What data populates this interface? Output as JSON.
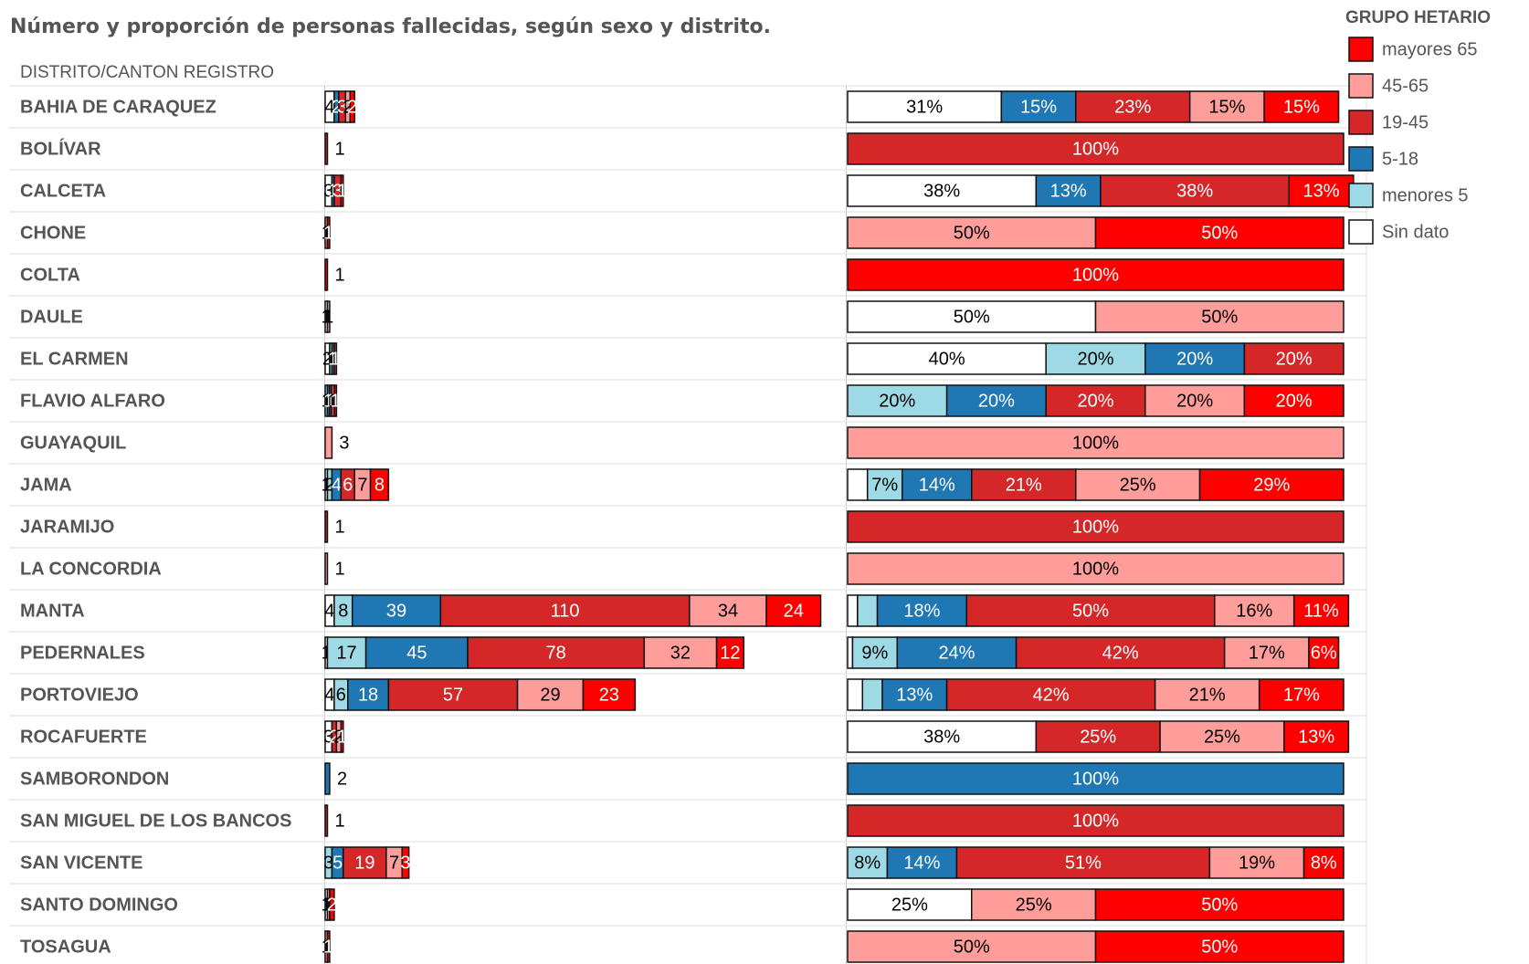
{
  "title": "Número y proporción de personas fallecidas, según sexo y distrito.",
  "row_header": "DISTRITO/CANTON REGISTRO",
  "legend_title": "GRUPO HETARIO",
  "chart_data": [
    {
      "type": "bar",
      "orientation": "horizontal",
      "stacked": true,
      "categories": [
        "BAHIA DE CARAQUEZ",
        "BOLÍVAR",
        "CALCETA",
        "CHONE",
        "COLTA",
        "DAULE",
        "EL CARMEN",
        "FLAVIO ALFARO",
        "GUAYAQUIL",
        "JAMA",
        "JARAMIJO",
        "LA CONCORDIA",
        "MANTA",
        "PEDERNALES",
        "PORTOVIEJO",
        "ROCAFUERTE",
        "SAMBORONDON",
        "SAN MIGUEL DE LOS BANCOS",
        "SAN VICENTE",
        "SANTO DOMINGO",
        "TOSAGUA"
      ],
      "xlim": [
        0,
        220
      ],
      "series": [
        {
          "name": "Sin dato",
          "color": "#ffffff",
          "values": [
            4,
            0,
            3,
            0,
            0,
            1,
            2,
            0,
            0,
            1,
            0,
            0,
            4,
            1,
            4,
            3,
            0,
            0,
            0,
            1,
            0
          ]
        },
        {
          "name": "menores 5",
          "color": "#9edae5",
          "values": [
            0,
            0,
            0,
            0,
            0,
            0,
            1,
            1,
            0,
            2,
            0,
            0,
            8,
            17,
            6,
            0,
            0,
            0,
            3,
            0,
            0
          ]
        },
        {
          "name": "5-18",
          "color": "#1f77b4",
          "values": [
            2,
            0,
            1,
            0,
            0,
            0,
            1,
            1,
            0,
            4,
            0,
            0,
            39,
            45,
            18,
            0,
            2,
            0,
            5,
            0,
            0
          ]
        },
        {
          "name": "19-45",
          "color": "#d62728",
          "values": [
            3,
            1,
            3,
            0,
            0,
            0,
            1,
            1,
            0,
            6,
            1,
            0,
            110,
            78,
            57,
            2,
            0,
            1,
            19,
            0,
            0
          ]
        },
        {
          "name": "45-65",
          "color": "#ff9d9a",
          "values": [
            2,
            0,
            0,
            1,
            0,
            1,
            0,
            1,
            3,
            7,
            0,
            1,
            34,
            32,
            29,
            2,
            0,
            0,
            7,
            1,
            1
          ]
        },
        {
          "name": "mayores 65",
          "color": "#ff0000",
          "values": [
            2,
            0,
            1,
            1,
            1,
            0,
            0,
            1,
            0,
            8,
            0,
            0,
            24,
            12,
            23,
            1,
            0,
            0,
            3,
            2,
            1
          ]
        }
      ]
    },
    {
      "type": "bar",
      "orientation": "horizontal",
      "stacked": true,
      "xlim": [
        0,
        100
      ],
      "series": [
        {
          "values": [
            31,
            0,
            38,
            0,
            0,
            50,
            40,
            0,
            0,
            4,
            0,
            0,
            2,
            1,
            3,
            38,
            0,
            0,
            0,
            25,
            0
          ],
          "value_labels": [
            "31%",
            null,
            "38%",
            null,
            null,
            "50%",
            "40%",
            null,
            null,
            null,
            null,
            null,
            null,
            null,
            null,
            "38%",
            null,
            null,
            null,
            "25%",
            null
          ]
        },
        {
          "values": [
            0,
            0,
            0,
            0,
            0,
            0,
            20,
            20,
            0,
            7,
            0,
            0,
            4,
            9,
            4,
            0,
            0,
            0,
            8,
            0,
            0
          ],
          "value_labels": [
            null,
            null,
            null,
            null,
            null,
            null,
            "20%",
            "20%",
            null,
            "7%",
            null,
            null,
            null,
            "9%",
            null,
            null,
            null,
            null,
            "8%",
            null,
            null
          ]
        },
        {
          "values": [
            15,
            0,
            13,
            0,
            0,
            0,
            20,
            20,
            0,
            14,
            0,
            0,
            18,
            24,
            13,
            0,
            100,
            0,
            14,
            0,
            0
          ],
          "value_labels": [
            "15%",
            null,
            "13%",
            null,
            null,
            null,
            "20%",
            "20%",
            null,
            "14%",
            null,
            null,
            "18%",
            "24%",
            "13%",
            null,
            "100%",
            null,
            "14%",
            null,
            null
          ]
        },
        {
          "values": [
            23,
            100,
            38,
            0,
            0,
            0,
            20,
            20,
            0,
            21,
            100,
            0,
            50,
            42,
            42,
            25,
            0,
            100,
            51,
            0,
            0
          ],
          "value_labels": [
            "23%",
            "100%",
            "38%",
            null,
            null,
            null,
            "20%",
            "20%",
            null,
            "21%",
            "100%",
            null,
            "50%",
            "42%",
            "42%",
            "25%",
            null,
            "100%",
            "51%",
            null,
            null
          ]
        },
        {
          "values": [
            15,
            0,
            0,
            50,
            0,
            50,
            0,
            20,
            100,
            25,
            0,
            100,
            16,
            17,
            21,
            25,
            0,
            0,
            19,
            25,
            50
          ],
          "value_labels": [
            "15%",
            null,
            null,
            "50%",
            null,
            "50%",
            null,
            "20%",
            "100%",
            "25%",
            null,
            "100%",
            "16%",
            "17%",
            "21%",
            "25%",
            null,
            null,
            "19%",
            "25%",
            "50%"
          ]
        },
        {
          "values": [
            15,
            0,
            13,
            50,
            100,
            0,
            0,
            20,
            0,
            29,
            0,
            0,
            11,
            6,
            17,
            13,
            0,
            0,
            8,
            50,
            50
          ],
          "value_labels": [
            "15%",
            null,
            "13%",
            "50%",
            "100%",
            null,
            null,
            "20%",
            null,
            "29%",
            null,
            null,
            "11%",
            "6%",
            "17%",
            "13%",
            null,
            null,
            "8%",
            "50%",
            "50%"
          ]
        }
      ]
    }
  ]
}
